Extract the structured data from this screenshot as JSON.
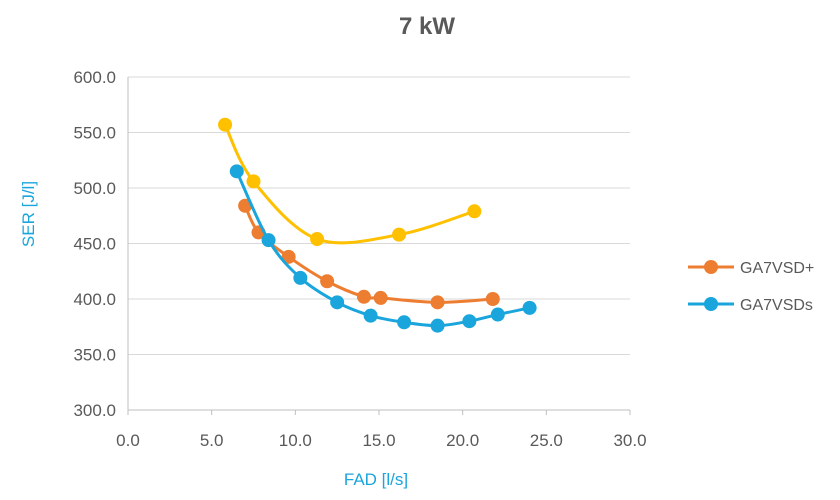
{
  "chart_data": {
    "type": "scatter",
    "title": "7 kW",
    "xlabel": "FAD [l/s]",
    "ylabel": "SER [J/l]",
    "xlim": [
      0,
      30
    ],
    "ylim": [
      300,
      600
    ],
    "x_ticks": [
      "0.0",
      "5.0",
      "10.0",
      "15.0",
      "20.0",
      "25.0",
      "30.0"
    ],
    "y_ticks": [
      "300.0",
      "350.0",
      "400.0",
      "450.0",
      "500.0",
      "550.0",
      "600.0"
    ],
    "grid": "horizontal",
    "legend_position": "right",
    "series": [
      {
        "color": "#ffc000",
        "show_in_legend": false,
        "points": [
          {
            "x": 5.8,
            "y": 557
          },
          {
            "x": 7.5,
            "y": 506
          },
          {
            "x": 11.3,
            "y": 454
          },
          {
            "x": 16.2,
            "y": 458
          },
          {
            "x": 20.7,
            "y": 479
          }
        ]
      },
      {
        "name": "GA7VSD+",
        "color": "#ed7d31",
        "show_in_legend": true,
        "points": [
          {
            "x": 7.0,
            "y": 484
          },
          {
            "x": 7.8,
            "y": 460
          },
          {
            "x": 9.6,
            "y": 438
          },
          {
            "x": 11.9,
            "y": 416
          },
          {
            "x": 14.1,
            "y": 402
          },
          {
            "x": 15.1,
            "y": 401
          },
          {
            "x": 18.5,
            "y": 397
          },
          {
            "x": 21.8,
            "y": 400
          }
        ]
      },
      {
        "name": "GA7VSDs",
        "color": "#1aa5dc",
        "show_in_legend": true,
        "points": [
          {
            "x": 6.5,
            "y": 515
          },
          {
            "x": 8.4,
            "y": 453
          },
          {
            "x": 10.3,
            "y": 419
          },
          {
            "x": 12.5,
            "y": 397
          },
          {
            "x": 14.5,
            "y": 385
          },
          {
            "x": 16.5,
            "y": 379
          },
          {
            "x": 18.5,
            "y": 376
          },
          {
            "x": 20.4,
            "y": 380
          },
          {
            "x": 22.1,
            "y": 386
          },
          {
            "x": 24.0,
            "y": 392
          }
        ]
      }
    ]
  }
}
